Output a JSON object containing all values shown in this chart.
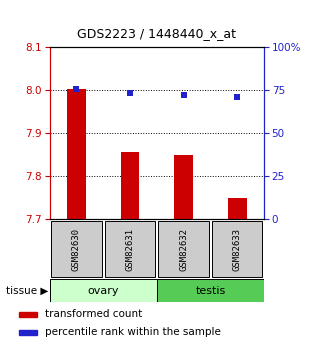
{
  "title": "GDS2223 / 1448440_x_at",
  "samples": [
    "GSM82630",
    "GSM82631",
    "GSM82632",
    "GSM82633"
  ],
  "transformed_count": [
    8.002,
    7.855,
    7.848,
    7.748
  ],
  "percentile_rank": [
    75.5,
    73.0,
    72.0,
    71.0
  ],
  "ylim_left": [
    7.7,
    8.1
  ],
  "ylim_right": [
    0,
    100
  ],
  "yticks_left": [
    7.7,
    7.8,
    7.9,
    8.0,
    8.1
  ],
  "yticks_right": [
    0,
    25,
    50,
    75,
    100
  ],
  "ytick_labels_right": [
    "0",
    "25",
    "50",
    "75",
    "100%"
  ],
  "bar_color": "#cc0000",
  "dot_color": "#2222cc",
  "bar_bottom": 7.7,
  "bar_width": 0.35,
  "tissue_groups": [
    {
      "label": "ovary",
      "indices": [
        0,
        1
      ],
      "color": "#ccffcc"
    },
    {
      "label": "testis",
      "indices": [
        2,
        3
      ],
      "color": "#55cc55"
    }
  ],
  "legend_items": [
    {
      "label": "transformed count",
      "color": "#cc0000"
    },
    {
      "label": "percentile rank within the sample",
      "color": "#2222cc"
    }
  ],
  "gsm_box_color": "#cccccc",
  "left_tick_color": "#cc0000",
  "right_tick_color": "#2222cc"
}
